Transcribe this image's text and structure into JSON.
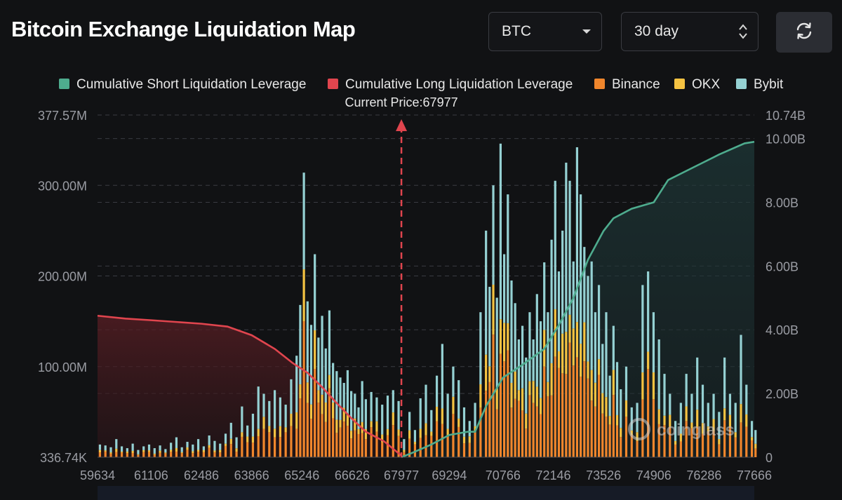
{
  "header": {
    "title": "Bitcoin Exchange Liquidation Map",
    "coin_select": {
      "value": "BTC",
      "icon": "caret-down-icon"
    },
    "range_select": {
      "value": "30 day",
      "icon": "updown-arrows-icon"
    },
    "refresh": {
      "icon": "refresh-icon"
    }
  },
  "watermark": "coinglass",
  "chart_data": {
    "type": "bar",
    "stacked": true,
    "current_price_label": "Current Price:67977",
    "current_price": 67977,
    "legend": [
      {
        "name": "Cumulative Short Liquidation Leverage",
        "color": "#4eac8e"
      },
      {
        "name": "Cumulative Long Liquidation Leverage",
        "color": "#e0454e"
      },
      {
        "name": "Binance",
        "color": "#f0862c"
      },
      {
        "name": "OKX",
        "color": "#f5c342"
      },
      {
        "name": "Bybit",
        "color": "#95d1d3"
      }
    ],
    "x_ticks": [
      "59634",
      "61106",
      "62486",
      "63866",
      "65246",
      "66626",
      "67977",
      "69294",
      "70766",
      "72146",
      "73526",
      "74906",
      "76286",
      "77666"
    ],
    "x_range": [
      59634,
      77666
    ],
    "left_axis": {
      "ticks": [
        "377.57M",
        "300.00M",
        "200.00M",
        "100.00M",
        "336.74K"
      ],
      "range": [
        336740,
        377570000
      ]
    },
    "right_axis": {
      "ticks": [
        "10.74B",
        "10.00B",
        "8.00B",
        "6.00B",
        "4.00B",
        "2.00B",
        "0"
      ],
      "range": [
        0,
        10740000000
      ]
    },
    "bars_millions": [
      [
        59700,
        14
      ],
      [
        59850,
        13
      ],
      [
        60000,
        11
      ],
      [
        60150,
        20
      ],
      [
        60300,
        12
      ],
      [
        60450,
        10
      ],
      [
        60600,
        15
      ],
      [
        60750,
        8
      ],
      [
        60900,
        12
      ],
      [
        61050,
        14
      ],
      [
        61200,
        10
      ],
      [
        61350,
        13
      ],
      [
        61500,
        9
      ],
      [
        61650,
        16
      ],
      [
        61800,
        22
      ],
      [
        61950,
        11
      ],
      [
        62100,
        17
      ],
      [
        62250,
        14
      ],
      [
        62400,
        20
      ],
      [
        62550,
        12
      ],
      [
        62700,
        24
      ],
      [
        62850,
        18
      ],
      [
        63000,
        15
      ],
      [
        63150,
        26
      ],
      [
        63300,
        38
      ],
      [
        63450,
        22
      ],
      [
        63600,
        56
      ],
      [
        63750,
        35
      ],
      [
        63900,
        48
      ],
      [
        64050,
        78
      ],
      [
        64200,
        70
      ],
      [
        64350,
        62
      ],
      [
        64500,
        74
      ],
      [
        64650,
        66
      ],
      [
        64800,
        58
      ],
      [
        64950,
        86
      ],
      [
        65100,
        112
      ],
      [
        65200,
        168
      ],
      [
        65300,
        314
      ],
      [
        65400,
        172
      ],
      [
        65500,
        146
      ],
      [
        65600,
        224
      ],
      [
        65700,
        132
      ],
      [
        65800,
        156
      ],
      [
        65900,
        120
      ],
      [
        66000,
        162
      ],
      [
        66100,
        104
      ],
      [
        66200,
        95
      ],
      [
        66300,
        88
      ],
      [
        66400,
        82
      ],
      [
        66500,
        96
      ],
      [
        66600,
        73
      ],
      [
        66700,
        70
      ],
      [
        66800,
        55
      ],
      [
        66900,
        84
      ],
      [
        67000,
        64
      ],
      [
        67150,
        72
      ],
      [
        67300,
        66
      ],
      [
        67450,
        58
      ],
      [
        67600,
        68
      ],
      [
        67750,
        74
      ],
      [
        67900,
        62
      ],
      [
        68050,
        20
      ],
      [
        68200,
        50
      ],
      [
        68350,
        30
      ],
      [
        68500,
        65
      ],
      [
        68650,
        80
      ],
      [
        68800,
        52
      ],
      [
        68950,
        90
      ],
      [
        69100,
        125
      ],
      [
        69250,
        70
      ],
      [
        69400,
        100
      ],
      [
        69550,
        85
      ],
      [
        69700,
        55
      ],
      [
        69850,
        40
      ],
      [
        70000,
        60
      ],
      [
        70150,
        160
      ],
      [
        70300,
        250
      ],
      [
        70400,
        188
      ],
      [
        70500,
        300
      ],
      [
        70600,
        176
      ],
      [
        70700,
        346
      ],
      [
        70800,
        224
      ],
      [
        70900,
        290
      ],
      [
        71000,
        195
      ],
      [
        71100,
        170
      ],
      [
        71200,
        130
      ],
      [
        71300,
        145
      ],
      [
        71400,
        110
      ],
      [
        71500,
        160
      ],
      [
        71600,
        130
      ],
      [
        71700,
        180
      ],
      [
        71800,
        150
      ],
      [
        71900,
        215
      ],
      [
        72000,
        160
      ],
      [
        72100,
        240
      ],
      [
        72200,
        305
      ],
      [
        72300,
        205
      ],
      [
        72400,
        250
      ],
      [
        72500,
        325
      ],
      [
        72600,
        305
      ],
      [
        72700,
        216
      ],
      [
        72800,
        342
      ],
      [
        72900,
        290
      ],
      [
        73000,
        232
      ],
      [
        73100,
        200
      ],
      [
        73200,
        216
      ],
      [
        73300,
        160
      ],
      [
        73400,
        190
      ],
      [
        73500,
        125
      ],
      [
        73600,
        160
      ],
      [
        73700,
        90
      ],
      [
        73800,
        145
      ],
      [
        73900,
        105
      ],
      [
        74000,
        75
      ],
      [
        74150,
        100
      ],
      [
        74300,
        55
      ],
      [
        74450,
        60
      ],
      [
        74600,
        190
      ],
      [
        74750,
        205
      ],
      [
        74900,
        160
      ],
      [
        75050,
        130
      ],
      [
        75200,
        92
      ],
      [
        75350,
        70
      ],
      [
        75500,
        40
      ],
      [
        75650,
        60
      ],
      [
        75800,
        92
      ],
      [
        75950,
        70
      ],
      [
        76100,
        110
      ],
      [
        76250,
        80
      ],
      [
        76400,
        60
      ],
      [
        76550,
        70
      ],
      [
        76700,
        50
      ],
      [
        76850,
        110
      ],
      [
        77000,
        70
      ],
      [
        77150,
        60
      ],
      [
        77300,
        135
      ],
      [
        77450,
        80
      ],
      [
        77600,
        40
      ],
      [
        77700,
        30
      ]
    ],
    "cumulative_long_billions": [
      [
        59634,
        4.44
      ],
      [
        60400,
        4.35
      ],
      [
        61106,
        4.3
      ],
      [
        62486,
        4.19
      ],
      [
        63200,
        4.1
      ],
      [
        63866,
        3.83
      ],
      [
        64500,
        3.4
      ],
      [
        65000,
        2.95
      ],
      [
        65400,
        2.65
      ],
      [
        65800,
        2.2
      ],
      [
        66200,
        1.7
      ],
      [
        66626,
        1.2
      ],
      [
        67000,
        0.8
      ],
      [
        67500,
        0.5
      ],
      [
        67977,
        0.05
      ]
    ],
    "cumulative_short_billions": [
      [
        67977,
        0
      ],
      [
        68300,
        0.15
      ],
      [
        68800,
        0.4
      ],
      [
        69294,
        0.7
      ],
      [
        69800,
        0.8
      ],
      [
        70000,
        0.8
      ],
      [
        70300,
        1.6
      ],
      [
        70766,
        2.5
      ],
      [
        71300,
        2.9
      ],
      [
        71900,
        3.4
      ],
      [
        72300,
        4.15
      ],
      [
        72700,
        5.0
      ],
      [
        73100,
        6.2
      ],
      [
        73526,
        7.1
      ],
      [
        73800,
        7.5
      ],
      [
        74300,
        7.8
      ],
      [
        74906,
        8.0
      ],
      [
        75300,
        8.7
      ],
      [
        76000,
        9.1
      ],
      [
        76700,
        9.5
      ],
      [
        77400,
        9.85
      ],
      [
        77666,
        9.9
      ]
    ]
  }
}
